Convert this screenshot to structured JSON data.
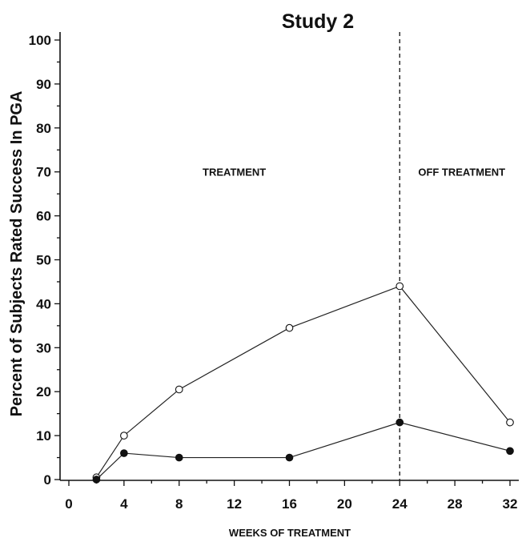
{
  "chart_data": {
    "type": "line",
    "title": "Study 2",
    "xlabel": "WEEKS OF TREATMENT",
    "ylabel": "Percent of Subjects Rated Success In PGA",
    "xlim": [
      0,
      32
    ],
    "ylim": [
      0,
      100
    ],
    "xticks": [
      0,
      4,
      8,
      12,
      16,
      20,
      24,
      28,
      32
    ],
    "yticks": [
      0,
      10,
      20,
      30,
      40,
      50,
      60,
      70,
      80,
      90,
      100
    ],
    "grid": false,
    "divider_x": 24,
    "annotations": [
      {
        "text": "TREATMENT",
        "x": 12,
        "y": 70
      },
      {
        "text": "OFF TREATMENT",
        "x": 28.5,
        "y": 70
      }
    ],
    "series": [
      {
        "marker": "open-circle",
        "x": [
          2,
          4,
          8,
          16,
          24,
          32
        ],
        "y": [
          0.5,
          10,
          20.5,
          34.5,
          44,
          13
        ]
      },
      {
        "marker": "filled-circle",
        "x": [
          2,
          4,
          8,
          16,
          24,
          32
        ],
        "y": [
          0,
          6,
          5,
          5,
          13,
          6.5
        ]
      }
    ]
  }
}
